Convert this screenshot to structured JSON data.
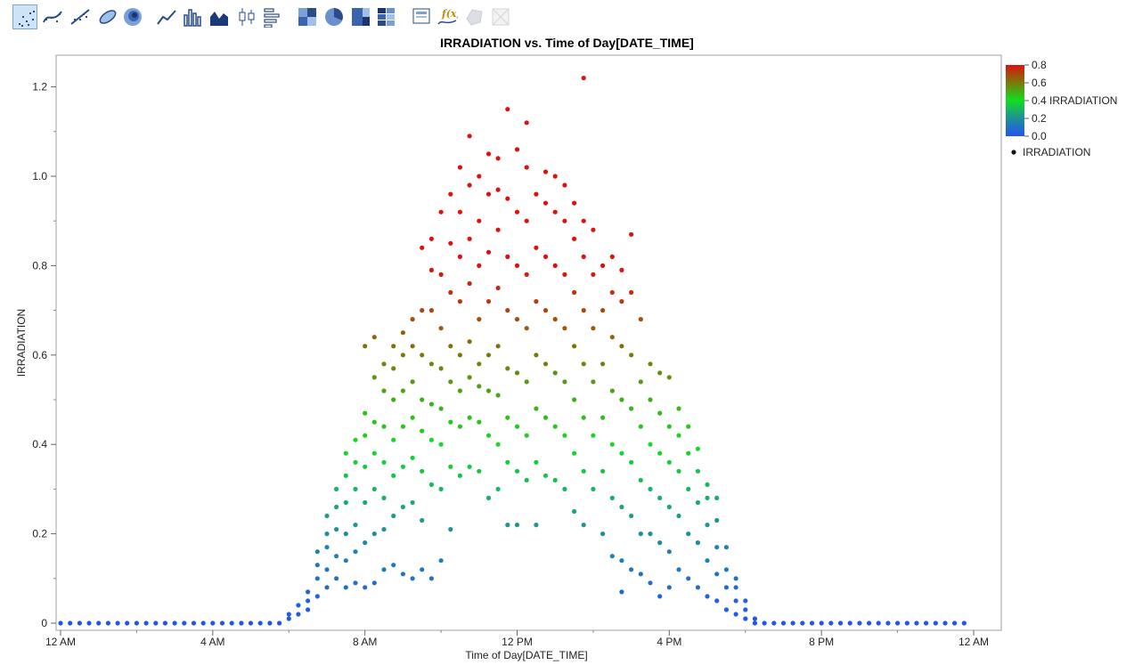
{
  "toolbar": {
    "buttons": [
      {
        "name": "points",
        "icon": "scatter-points-icon",
        "selected": true
      },
      {
        "name": "smoother",
        "icon": "smoother-icon"
      },
      {
        "name": "line-of-fit",
        "icon": "line-of-fit-icon"
      },
      {
        "name": "ellipse",
        "icon": "ellipse-icon"
      },
      {
        "name": "contour",
        "icon": "contour-icon"
      },
      {
        "name": "line",
        "icon": "line-chart-icon"
      },
      {
        "name": "bar",
        "icon": "bar-chart-icon"
      },
      {
        "name": "area",
        "icon": "area-chart-icon"
      },
      {
        "name": "box-plot",
        "icon": "box-plot-icon"
      },
      {
        "name": "histogram",
        "icon": "histogram-icon"
      },
      {
        "name": "heatmap",
        "icon": "heatmap-icon"
      },
      {
        "name": "pie",
        "icon": "pie-chart-icon"
      },
      {
        "name": "treemap",
        "icon": "treemap-icon"
      },
      {
        "name": "mosaic",
        "icon": "mosaic-icon"
      },
      {
        "name": "caption-box",
        "icon": "caption-box-icon"
      },
      {
        "name": "formula",
        "icon": "formula-icon"
      },
      {
        "name": "map-shapes",
        "icon": "map-shapes-icon",
        "disabled": true
      },
      {
        "name": "parallel",
        "icon": "parallel-icon",
        "disabled": true
      }
    ]
  },
  "colors": {
    "gradient": [
      "#2255ee",
      "#1f8f9a",
      "#11dd22",
      "#7a7a0a",
      "#dd1111"
    ],
    "point_default": "#111111",
    "frame": "#a0a0a0"
  },
  "chart_data": {
    "type": "scatter",
    "title": "IRRADIATION vs. Time of Day[DATE_TIME]",
    "xlabel": "Time of Day[DATE_TIME]",
    "ylabel": "IRRADIATION",
    "x_unit": "hours of day",
    "xlim": [
      0,
      24
    ],
    "ylim": [
      0,
      1.25
    ],
    "x_ticks": [
      {
        "value": 0,
        "label": "12 AM"
      },
      {
        "value": 4,
        "label": "4 AM"
      },
      {
        "value": 8,
        "label": "8 AM"
      },
      {
        "value": 12,
        "label": "12 PM"
      },
      {
        "value": 16,
        "label": "4 PM"
      },
      {
        "value": 20,
        "label": "8 PM"
      },
      {
        "value": 24,
        "label": "12 AM"
      }
    ],
    "y_ticks": [
      {
        "value": 0,
        "label": "0"
      },
      {
        "value": 0.2,
        "label": "0.2"
      },
      {
        "value": 0.4,
        "label": "0.4"
      },
      {
        "value": 0.6,
        "label": "0.6"
      },
      {
        "value": 0.8,
        "label": "0.8"
      },
      {
        "value": 1.0,
        "label": "1.0"
      },
      {
        "value": 1.2,
        "label": "1.2"
      }
    ],
    "legend": {
      "placement": "right",
      "color_variable": "IRRADIATION",
      "color_range": [
        0,
        0.8
      ],
      "color_ticks": [
        "0.8",
        "0.6",
        "0.4",
        "0.2",
        "0.0"
      ],
      "marker_label": "IRRADIATION"
    },
    "grid": false,
    "points": [
      [
        0,
        0
      ],
      [
        0.25,
        0
      ],
      [
        0.5,
        0
      ],
      [
        0.75,
        0
      ],
      [
        1,
        0
      ],
      [
        1.25,
        0
      ],
      [
        1.5,
        0
      ],
      [
        1.75,
        0
      ],
      [
        2,
        0
      ],
      [
        2.25,
        0
      ],
      [
        2.5,
        0
      ],
      [
        2.75,
        0
      ],
      [
        3,
        0
      ],
      [
        3.25,
        0
      ],
      [
        3.5,
        0
      ],
      [
        3.75,
        0
      ],
      [
        4,
        0
      ],
      [
        4.25,
        0
      ],
      [
        4.5,
        0
      ],
      [
        4.75,
        0
      ],
      [
        5,
        0
      ],
      [
        5.25,
        0
      ],
      [
        5.5,
        0
      ],
      [
        5.75,
        0
      ],
      [
        6,
        0.01
      ],
      [
        6,
        0.02
      ],
      [
        6.25,
        0.02
      ],
      [
        6.25,
        0.04
      ],
      [
        6.5,
        0.03
      ],
      [
        6.5,
        0.05
      ],
      [
        6.5,
        0.07
      ],
      [
        6.75,
        0.06
      ],
      [
        6.75,
        0.1
      ],
      [
        6.75,
        0.13
      ],
      [
        6.75,
        0.16
      ],
      [
        7,
        0.08
      ],
      [
        7,
        0.12
      ],
      [
        7,
        0.17
      ],
      [
        7,
        0.2
      ],
      [
        7,
        0.24
      ],
      [
        7.25,
        0.1
      ],
      [
        7.25,
        0.15
      ],
      [
        7.25,
        0.21
      ],
      [
        7.25,
        0.26
      ],
      [
        7.25,
        0.3
      ],
      [
        7.5,
        0.08
      ],
      [
        7.5,
        0.14
      ],
      [
        7.5,
        0.2
      ],
      [
        7.5,
        0.27
      ],
      [
        7.5,
        0.33
      ],
      [
        7.5,
        0.38
      ],
      [
        7.75,
        0.09
      ],
      [
        7.75,
        0.16
      ],
      [
        7.75,
        0.22
      ],
      [
        7.75,
        0.3
      ],
      [
        7.75,
        0.36
      ],
      [
        7.75,
        0.41
      ],
      [
        8,
        0.08
      ],
      [
        8,
        0.18
      ],
      [
        8,
        0.27
      ],
      [
        8,
        0.35
      ],
      [
        8,
        0.42
      ],
      [
        8,
        0.47
      ],
      [
        8,
        0.62
      ],
      [
        8.25,
        0.09
      ],
      [
        8.25,
        0.2
      ],
      [
        8.25,
        0.3
      ],
      [
        8.25,
        0.38
      ],
      [
        8.25,
        0.45
      ],
      [
        8.25,
        0.55
      ],
      [
        8.25,
        0.64
      ],
      [
        8.5,
        0.12
      ],
      [
        8.5,
        0.21
      ],
      [
        8.5,
        0.28
      ],
      [
        8.5,
        0.36
      ],
      [
        8.5,
        0.44
      ],
      [
        8.5,
        0.52
      ],
      [
        8.5,
        0.58
      ],
      [
        8.75,
        0.13
      ],
      [
        8.75,
        0.24
      ],
      [
        8.75,
        0.33
      ],
      [
        8.75,
        0.41
      ],
      [
        8.75,
        0.5
      ],
      [
        8.75,
        0.57
      ],
      [
        8.75,
        0.62
      ],
      [
        9,
        0.11
      ],
      [
        9,
        0.26
      ],
      [
        9,
        0.35
      ],
      [
        9,
        0.44
      ],
      [
        9,
        0.52
      ],
      [
        9,
        0.6
      ],
      [
        9,
        0.65
      ],
      [
        9.25,
        0.1
      ],
      [
        9.25,
        0.27
      ],
      [
        9.25,
        0.37
      ],
      [
        9.25,
        0.46
      ],
      [
        9.25,
        0.54
      ],
      [
        9.25,
        0.62
      ],
      [
        9.25,
        0.68
      ],
      [
        9.5,
        0.12
      ],
      [
        9.5,
        0.23
      ],
      [
        9.5,
        0.34
      ],
      [
        9.5,
        0.43
      ],
      [
        9.5,
        0.5
      ],
      [
        9.5,
        0.6
      ],
      [
        9.5,
        0.7
      ],
      [
        9.5,
        0.84
      ],
      [
        9.75,
        0.1
      ],
      [
        9.75,
        0.31
      ],
      [
        9.75,
        0.41
      ],
      [
        9.75,
        0.49
      ],
      [
        9.75,
        0.58
      ],
      [
        9.75,
        0.7
      ],
      [
        9.75,
        0.79
      ],
      [
        9.75,
        0.86
      ],
      [
        10,
        0.14
      ],
      [
        10,
        0.3
      ],
      [
        10,
        0.4
      ],
      [
        10,
        0.48
      ],
      [
        10,
        0.57
      ],
      [
        10,
        0.66
      ],
      [
        10,
        0.78
      ],
      [
        10,
        0.92
      ],
      [
        10.25,
        0.21
      ],
      [
        10.25,
        0.35
      ],
      [
        10.25,
        0.45
      ],
      [
        10.25,
        0.54
      ],
      [
        10.25,
        0.62
      ],
      [
        10.25,
        0.74
      ],
      [
        10.25,
        0.85
      ],
      [
        10.25,
        0.96
      ],
      [
        10.5,
        0.33
      ],
      [
        10.5,
        0.44
      ],
      [
        10.5,
        0.52
      ],
      [
        10.5,
        0.6
      ],
      [
        10.5,
        0.72
      ],
      [
        10.5,
        0.82
      ],
      [
        10.5,
        0.92
      ],
      [
        10.5,
        1.02
      ],
      [
        10.75,
        0.35
      ],
      [
        10.75,
        0.46
      ],
      [
        10.75,
        0.55
      ],
      [
        10.75,
        0.63
      ],
      [
        10.75,
        0.76
      ],
      [
        10.75,
        0.86
      ],
      [
        10.75,
        0.98
      ],
      [
        10.75,
        1.09
      ],
      [
        11,
        0.34
      ],
      [
        11,
        0.45
      ],
      [
        11,
        0.53
      ],
      [
        11,
        0.58
      ],
      [
        11,
        0.68
      ],
      [
        11,
        0.8
      ],
      [
        11,
        0.9
      ],
      [
        11,
        1.0
      ],
      [
        11.25,
        0.28
      ],
      [
        11.25,
        0.42
      ],
      [
        11.25,
        0.52
      ],
      [
        11.25,
        0.6
      ],
      [
        11.25,
        0.72
      ],
      [
        11.25,
        0.83
      ],
      [
        11.25,
        0.96
      ],
      [
        11.25,
        1.05
      ],
      [
        11.5,
        0.3
      ],
      [
        11.5,
        0.4
      ],
      [
        11.5,
        0.51
      ],
      [
        11.5,
        0.62
      ],
      [
        11.5,
        0.75
      ],
      [
        11.5,
        0.88
      ],
      [
        11.5,
        0.97
      ],
      [
        11.5,
        1.04
      ],
      [
        11.75,
        0.22
      ],
      [
        11.75,
        0.36
      ],
      [
        11.75,
        0.46
      ],
      [
        11.75,
        0.57
      ],
      [
        11.75,
        0.7
      ],
      [
        11.75,
        0.82
      ],
      [
        11.75,
        0.95
      ],
      [
        11.75,
        1.15
      ],
      [
        12,
        0.22
      ],
      [
        12,
        0.34
      ],
      [
        12,
        0.44
      ],
      [
        12,
        0.56
      ],
      [
        12,
        0.68
      ],
      [
        12,
        0.8
      ],
      [
        12,
        0.92
      ],
      [
        12,
        1.06
      ],
      [
        12.25,
        0.32
      ],
      [
        12.25,
        0.42
      ],
      [
        12.25,
        0.54
      ],
      [
        12.25,
        0.66
      ],
      [
        12.25,
        0.78
      ],
      [
        12.25,
        0.9
      ],
      [
        12.25,
        1.02
      ],
      [
        12.25,
        1.12
      ],
      [
        12.5,
        0.22
      ],
      [
        12.5,
        0.36
      ],
      [
        12.5,
        0.48
      ],
      [
        12.5,
        0.6
      ],
      [
        12.5,
        0.72
      ],
      [
        12.5,
        0.84
      ],
      [
        12.5,
        0.96
      ],
      [
        12.75,
        0.33
      ],
      [
        12.75,
        0.46
      ],
      [
        12.75,
        0.58
      ],
      [
        12.75,
        0.7
      ],
      [
        12.75,
        0.82
      ],
      [
        12.75,
        0.94
      ],
      [
        12.75,
        1.01
      ],
      [
        13,
        0.32
      ],
      [
        13,
        0.44
      ],
      [
        13,
        0.56
      ],
      [
        13,
        0.68
      ],
      [
        13,
        0.8
      ],
      [
        13,
        0.92
      ],
      [
        13,
        1.0
      ],
      [
        13.25,
        0.3
      ],
      [
        13.25,
        0.42
      ],
      [
        13.25,
        0.54
      ],
      [
        13.25,
        0.66
      ],
      [
        13.25,
        0.78
      ],
      [
        13.25,
        0.9
      ],
      [
        13.25,
        0.98
      ],
      [
        13.5,
        0.25
      ],
      [
        13.5,
        0.38
      ],
      [
        13.5,
        0.5
      ],
      [
        13.5,
        0.62
      ],
      [
        13.5,
        0.74
      ],
      [
        13.5,
        0.86
      ],
      [
        13.5,
        0.94
      ],
      [
        13.75,
        0.22
      ],
      [
        13.75,
        0.34
      ],
      [
        13.75,
        0.46
      ],
      [
        13.75,
        0.58
      ],
      [
        13.75,
        0.7
      ],
      [
        13.75,
        0.82
      ],
      [
        13.75,
        0.9
      ],
      [
        13.75,
        1.22
      ],
      [
        14,
        0.3
      ],
      [
        14,
        0.42
      ],
      [
        14,
        0.54
      ],
      [
        14,
        0.66
      ],
      [
        14,
        0.78
      ],
      [
        14,
        0.88
      ],
      [
        14.25,
        0.2
      ],
      [
        14.25,
        0.34
      ],
      [
        14.25,
        0.46
      ],
      [
        14.25,
        0.58
      ],
      [
        14.25,
        0.7
      ],
      [
        14.25,
        0.8
      ],
      [
        14.5,
        0.15
      ],
      [
        14.5,
        0.28
      ],
      [
        14.5,
        0.4
      ],
      [
        14.5,
        0.52
      ],
      [
        14.5,
        0.64
      ],
      [
        14.5,
        0.74
      ],
      [
        14.5,
        0.82
      ],
      [
        14.75,
        0.07
      ],
      [
        14.75,
        0.14
      ],
      [
        14.75,
        0.26
      ],
      [
        14.75,
        0.38
      ],
      [
        14.75,
        0.5
      ],
      [
        14.75,
        0.62
      ],
      [
        14.75,
        0.72
      ],
      [
        14.75,
        0.79
      ],
      [
        15,
        0.12
      ],
      [
        15,
        0.24
      ],
      [
        15,
        0.36
      ],
      [
        15,
        0.48
      ],
      [
        15,
        0.6
      ],
      [
        15,
        0.74
      ],
      [
        15,
        0.87
      ],
      [
        15.25,
        0.11
      ],
      [
        15.25,
        0.2
      ],
      [
        15.25,
        0.32
      ],
      [
        15.25,
        0.44
      ],
      [
        15.25,
        0.54
      ],
      [
        15.25,
        0.68
      ],
      [
        15.5,
        0.09
      ],
      [
        15.5,
        0.2
      ],
      [
        15.5,
        0.3
      ],
      [
        15.5,
        0.4
      ],
      [
        15.5,
        0.5
      ],
      [
        15.5,
        0.58
      ],
      [
        15.75,
        0.06
      ],
      [
        15.75,
        0.18
      ],
      [
        15.75,
        0.28
      ],
      [
        15.75,
        0.38
      ],
      [
        15.75,
        0.47
      ],
      [
        15.75,
        0.56
      ],
      [
        16,
        0.08
      ],
      [
        16,
        0.16
      ],
      [
        16,
        0.26
      ],
      [
        16,
        0.36
      ],
      [
        16,
        0.44
      ],
      [
        16,
        0.55
      ],
      [
        16.25,
        0.12
      ],
      [
        16.25,
        0.24
      ],
      [
        16.25,
        0.34
      ],
      [
        16.25,
        0.42
      ],
      [
        16.25,
        0.48
      ],
      [
        16.5,
        0.1
      ],
      [
        16.5,
        0.2
      ],
      [
        16.5,
        0.3
      ],
      [
        16.5,
        0.38
      ],
      [
        16.5,
        0.44
      ],
      [
        16.75,
        0.08
      ],
      [
        16.75,
        0.18
      ],
      [
        16.75,
        0.27
      ],
      [
        16.75,
        0.34
      ],
      [
        16.75,
        0.39
      ],
      [
        17,
        0.06
      ],
      [
        17,
        0.14
      ],
      [
        17,
        0.22
      ],
      [
        17,
        0.28
      ],
      [
        17,
        0.31
      ],
      [
        17.25,
        0.05
      ],
      [
        17.25,
        0.11
      ],
      [
        17.25,
        0.17
      ],
      [
        17.25,
        0.23
      ],
      [
        17.25,
        0.28
      ],
      [
        17.5,
        0.03
      ],
      [
        17.5,
        0.08
      ],
      [
        17.5,
        0.12
      ],
      [
        17.5,
        0.17
      ],
      [
        17.75,
        0.02
      ],
      [
        17.75,
        0.05
      ],
      [
        17.75,
        0.08
      ],
      [
        17.75,
        0.1
      ],
      [
        18,
        0.01
      ],
      [
        18,
        0.03
      ],
      [
        18,
        0.05
      ],
      [
        18.25,
        0
      ],
      [
        18.25,
        0.01
      ],
      [
        18.5,
        0
      ],
      [
        18.75,
        0
      ],
      [
        19,
        0
      ],
      [
        19.25,
        0
      ],
      [
        19.5,
        0
      ],
      [
        19.75,
        0
      ],
      [
        20,
        0
      ],
      [
        20.25,
        0
      ],
      [
        20.5,
        0
      ],
      [
        20.75,
        0
      ],
      [
        21,
        0
      ],
      [
        21.25,
        0
      ],
      [
        21.5,
        0
      ],
      [
        21.75,
        0
      ],
      [
        22,
        0
      ],
      [
        22.25,
        0
      ],
      [
        22.5,
        0
      ],
      [
        22.75,
        0
      ],
      [
        23,
        0
      ],
      [
        23.25,
        0
      ],
      [
        23.5,
        0
      ],
      [
        23.75,
        0
      ]
    ]
  }
}
